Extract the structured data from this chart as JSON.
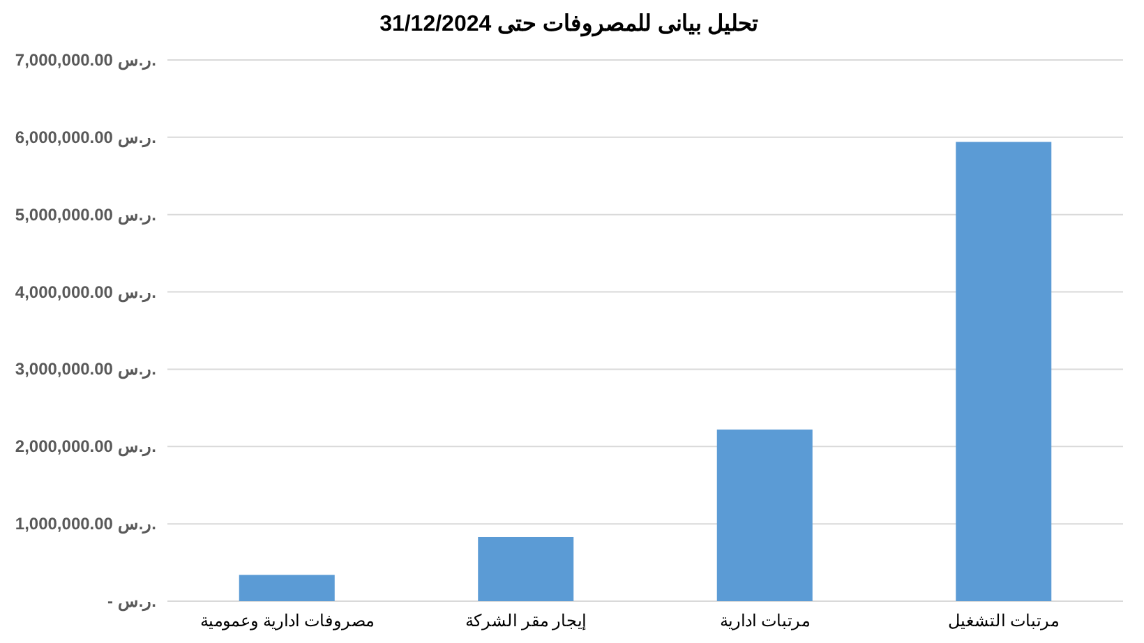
{
  "chart_data": {
    "type": "bar",
    "title": "تحليل بيانى للمصروفات حتى 31/12/2024",
    "categories": [
      "مصروفات ادارية وعمومية",
      "إيجار مقر الشركة",
      "مرتبات ادارية",
      "مرتبات التشغيل"
    ],
    "values": [
      340000,
      830000,
      2220000,
      5940000
    ],
    "color": "#5b9bd5",
    "ylim": [
      0,
      7000000
    ],
    "yticks": [
      {
        "value": 0,
        "label": "- ر.س."
      },
      {
        "value": 1000000,
        "label": "1,000,000.00 ر.س."
      },
      {
        "value": 2000000,
        "label": "2,000,000.00 ر.س."
      },
      {
        "value": 3000000,
        "label": "3,000,000.00 ر.س."
      },
      {
        "value": 4000000,
        "label": "4,000,000.00 ر.س."
      },
      {
        "value": 5000000,
        "label": "5,000,000.00 ر.س."
      },
      {
        "value": 6000000,
        "label": "6,000,000.00 ر.س."
      },
      {
        "value": 7000000,
        "label": "7,000,000.00 ر.س."
      }
    ],
    "grid": "y"
  }
}
